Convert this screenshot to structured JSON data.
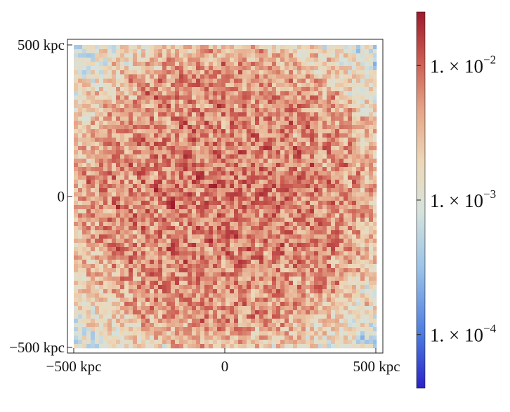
{
  "chart_data": {
    "type": "heatmap",
    "title": "",
    "xlabel": "",
    "ylabel": "",
    "x_ticks": [
      "−500 kpc",
      "0",
      "500 kpc"
    ],
    "y_ticks": [
      "500 kpc",
      "0",
      "−500 kpc"
    ],
    "x_tick_values": [
      -500,
      0,
      500
    ],
    "y_tick_values": [
      500,
      0,
      -500
    ],
    "xlim": [
      -500,
      500
    ],
    "ylim": [
      -500,
      500
    ],
    "x_unit": "kpc",
    "y_unit": "kpc",
    "pattern": "turbulent noise field, higher values in a central disc of radius ~400 kpc, lower values toward the corners",
    "colorbar": {
      "scale": "log",
      "range": [
        4e-05,
        0.025
      ],
      "tick_values": [
        0.01,
        0.001,
        0.0001
      ],
      "tick_labels": [
        {
          "base": "1. × 10",
          "exp": "−2"
        },
        {
          "base": "1. × 10",
          "exp": "−3"
        },
        {
          "base": "1. × 10",
          "exp": "−4"
        }
      ],
      "colormap": [
        "#2b22c9",
        "#4a7ae0",
        "#9cc3e8",
        "#d6e2dc",
        "#ecd8b8",
        "#e6a487",
        "#c8574f",
        "#9e1a2c"
      ]
    }
  }
}
